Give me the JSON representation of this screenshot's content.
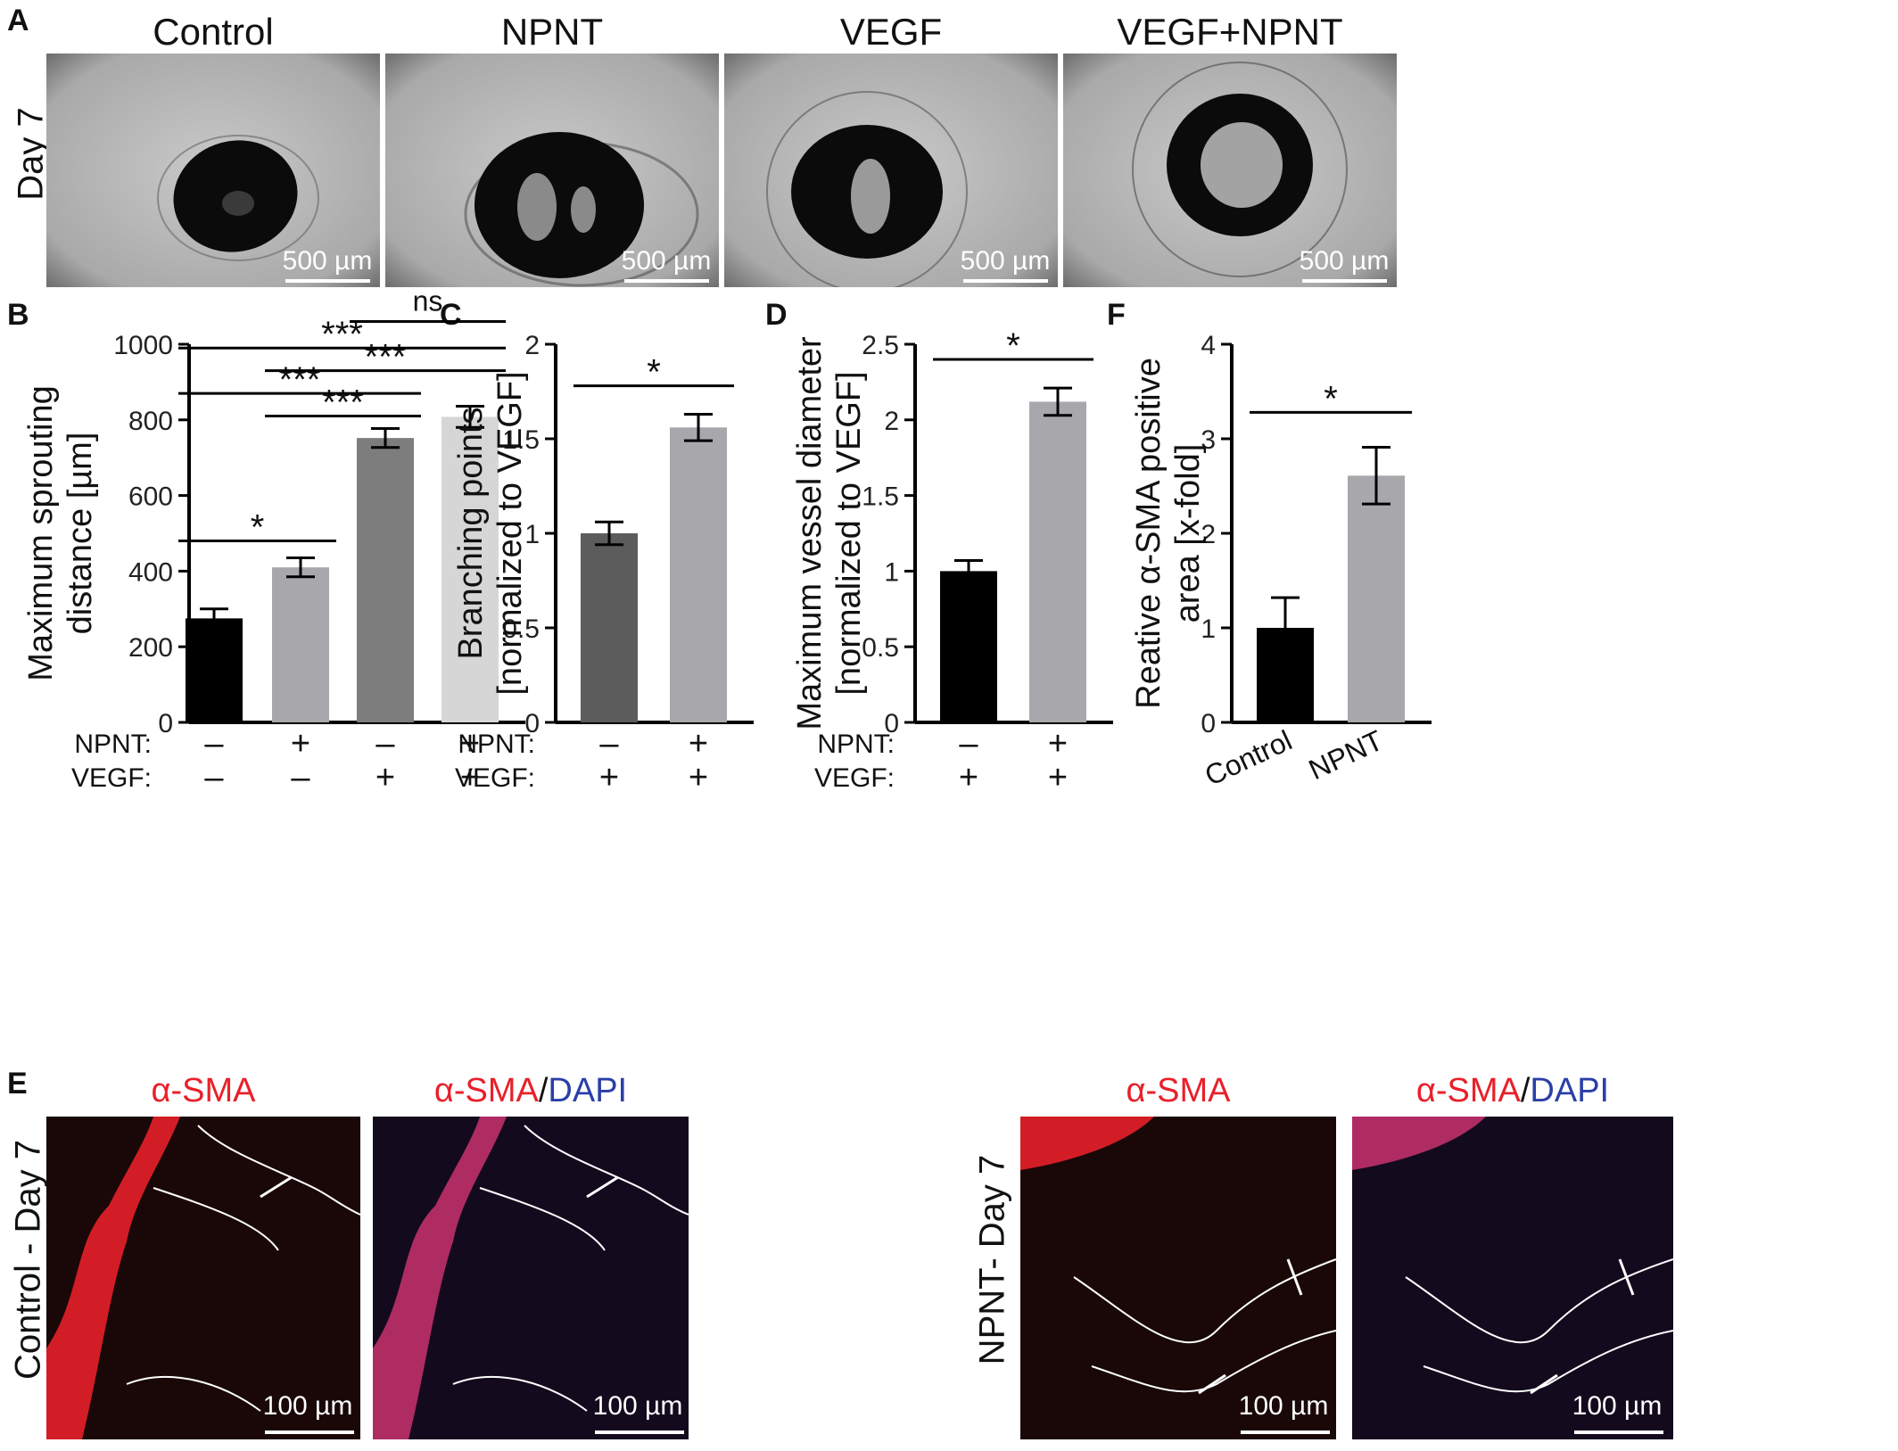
{
  "panels": {
    "A": "A",
    "B": "B",
    "C": "C",
    "D": "D",
    "E": "E",
    "F": "F"
  },
  "panel_a": {
    "row_label": "Day 7",
    "columns": [
      "Control",
      "NPNT",
      "VEGF",
      "VEGF+NPNT"
    ],
    "scale_label": "500 µm"
  },
  "panel_e": {
    "row_labels": [
      "Control - Day 7",
      "NPNT- Day 7"
    ],
    "label_sma": "α-SMA",
    "label_slash": "/",
    "label_dapi": "DAPI",
    "scale_label": "100 µm",
    "colors": {
      "red": "#e8202a",
      "blue": "#2b3fa8"
    }
  },
  "chart_data": [
    {
      "panel": "B",
      "type": "bar",
      "ylabel_lines": [
        "Maximum sprouting",
        "distance [µm]"
      ],
      "ylim": [
        0,
        1000
      ],
      "yticks": [
        0,
        200,
        400,
        600,
        800,
        1000
      ],
      "row_labels": [
        "NPNT:",
        "VEGF:"
      ],
      "conditions": [
        {
          "npnt": "–",
          "vegf": "–",
          "value": 275,
          "err": 25,
          "color": "#000000"
        },
        {
          "npnt": "+",
          "vegf": "–",
          "value": 410,
          "err": 25,
          "color": "#a8a8ac"
        },
        {
          "npnt": "–",
          "vegf": "+",
          "value": 752,
          "err": 25,
          "color": "#7d7d7d"
        },
        {
          "npnt": "+",
          "vegf": "+",
          "value": 808,
          "err": 28,
          "color": "#d6d6d6"
        }
      ],
      "significance": [
        {
          "from": 0,
          "to": 1,
          "label": "*",
          "y": 480
        },
        {
          "from": 1,
          "to": 2,
          "label": "***",
          "y": 810
        },
        {
          "from": 0,
          "to": 2,
          "label": "***",
          "y": 870
        },
        {
          "from": 1,
          "to": 3,
          "label": "***",
          "y": 930
        },
        {
          "from": 0,
          "to": 3,
          "label": "***",
          "y": 990
        },
        {
          "from": 2,
          "to": 3,
          "label": "ns",
          "y": 1060
        }
      ]
    },
    {
      "panel": "C",
      "type": "bar",
      "ylabel_lines": [
        "Branching points",
        "[normalized to VEGF]"
      ],
      "ylim": [
        0,
        2.0
      ],
      "yticks": [
        0,
        0.5,
        1.0,
        1.5,
        2.0
      ],
      "row_labels": [
        "NPNT:",
        "VEGF:"
      ],
      "conditions": [
        {
          "npnt": "–",
          "vegf": "+",
          "value": 1.0,
          "err": 0.06,
          "color": "#5c5c5c"
        },
        {
          "npnt": "+",
          "vegf": "+",
          "value": 1.56,
          "err": 0.07,
          "color": "#a8a8ac"
        }
      ],
      "significance": [
        {
          "from": 0,
          "to": 1,
          "label": "*",
          "y": 1.78
        }
      ]
    },
    {
      "panel": "D",
      "type": "bar",
      "ylabel_lines": [
        "Maximum vessel diameter",
        "[normalized to VEGF]"
      ],
      "ylim": [
        0,
        2.5
      ],
      "yticks": [
        0,
        0.5,
        1.0,
        1.5,
        2.0,
        2.5
      ],
      "row_labels": [
        "NPNT:",
        "VEGF:"
      ],
      "conditions": [
        {
          "npnt": "–",
          "vegf": "+",
          "value": 1.0,
          "err": 0.07,
          "color": "#000000"
        },
        {
          "npnt": "+",
          "vegf": "+",
          "value": 2.12,
          "err": 0.09,
          "color": "#a8a8ac"
        }
      ],
      "significance": [
        {
          "from": 0,
          "to": 1,
          "label": "*",
          "y": 2.4
        }
      ]
    },
    {
      "panel": "F",
      "type": "bar",
      "ylabel_lines": [
        "Reative α-SMA positive",
        "area  [x-fold]"
      ],
      "ylim": [
        0,
        4
      ],
      "yticks": [
        0,
        1,
        2,
        3,
        4
      ],
      "categories": [
        "Control",
        "NPNT"
      ],
      "conditions": [
        {
          "value": 1.0,
          "err": 0.32,
          "color": "#000000"
        },
        {
          "value": 2.61,
          "err": 0.3,
          "color": "#a8a8ac"
        }
      ],
      "significance": [
        {
          "from": 0,
          "to": 1,
          "label": "*",
          "y": 3.28
        }
      ]
    }
  ]
}
